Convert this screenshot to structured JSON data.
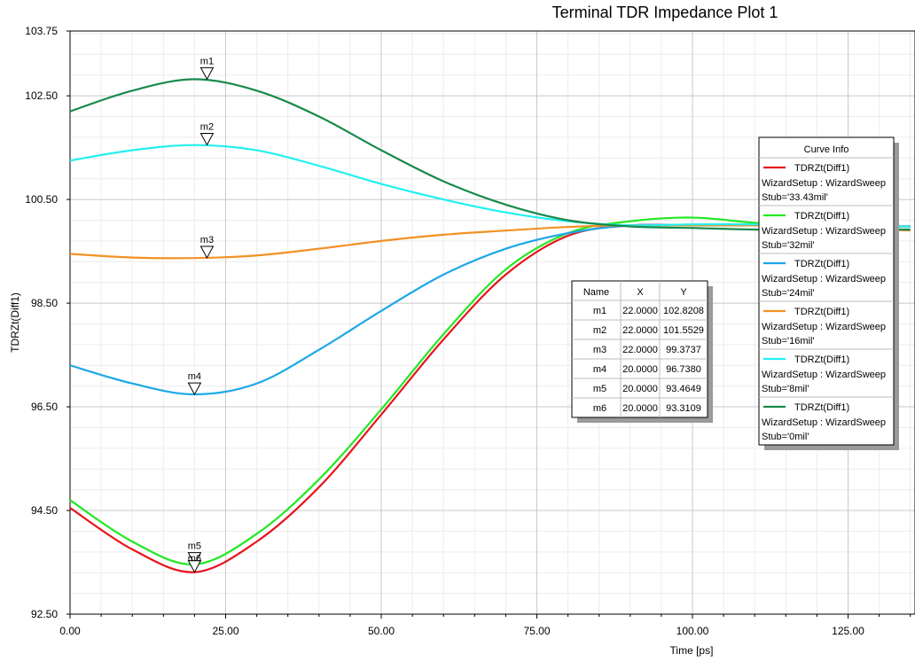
{
  "chart_data": {
    "type": "line",
    "title": "Terminal TDR Impedance Plot 1",
    "xlabel": "Time [ps]",
    "ylabel": "TDRZt(Diff1)",
    "xlim": [
      0,
      135
    ],
    "ylim": [
      92.5,
      103.75
    ],
    "x_ticks": [
      "0.00",
      "25.00",
      "50.00",
      "75.00",
      "100.00",
      "125.00"
    ],
    "y_ticks": [
      "92.50",
      "94.50",
      "96.50",
      "98.50",
      "100.50",
      "102.50",
      "103.75"
    ],
    "grid": true,
    "series": [
      {
        "name": "TDRZt(Diff1)",
        "setup": "WizardSetup : WizardSweep",
        "param": "Stub='33.43mil'",
        "color": "#e8141e",
        "x": [
          0,
          10,
          20,
          30,
          40,
          50,
          60,
          70,
          80,
          90,
          100,
          110,
          120,
          135
        ],
        "y": [
          94.55,
          93.75,
          93.31,
          93.9,
          94.95,
          96.35,
          97.8,
          99.05,
          99.8,
          100.0,
          100.0,
          100.0,
          99.98,
          99.98
        ]
      },
      {
        "name": "TDRZt(Diff1)",
        "setup": "WizardSetup : WizardSweep",
        "param": "Stub='32mil'",
        "color": "#22e822",
        "x": [
          0,
          10,
          20,
          30,
          40,
          50,
          60,
          70,
          80,
          90,
          100,
          110,
          120,
          135
        ],
        "y": [
          94.7,
          93.9,
          93.46,
          94.05,
          95.1,
          96.45,
          97.9,
          99.15,
          99.85,
          100.08,
          100.15,
          100.05,
          99.98,
          99.98
        ]
      },
      {
        "name": "TDRZt(Diff1)",
        "setup": "WizardSetup : WizardSweep",
        "param": "Stub='24mil'",
        "color": "#1aa8e8",
        "x": [
          0,
          10,
          20,
          30,
          40,
          50,
          60,
          70,
          80,
          90,
          100,
          110,
          120,
          135
        ],
        "y": [
          97.3,
          96.95,
          96.74,
          96.95,
          97.6,
          98.35,
          99.05,
          99.55,
          99.85,
          100.0,
          100.0,
          100.0,
          99.98,
          99.98
        ]
      },
      {
        "name": "TDRZt(Diff1)",
        "setup": "WizardSetup : WizardSweep",
        "param": "Stub='16mil'",
        "color": "#f29124",
        "x": [
          0,
          10,
          20,
          30,
          40,
          50,
          60,
          70,
          80,
          90,
          100,
          110,
          120,
          135
        ],
        "y": [
          99.45,
          99.38,
          99.37,
          99.42,
          99.55,
          99.7,
          99.82,
          99.9,
          99.97,
          100.0,
          100.0,
          100.0,
          99.98,
          99.9
        ]
      },
      {
        "name": "TDRZt(Diff1)",
        "setup": "WizardSetup : WizardSweep",
        "param": "Stub='8mil'",
        "color": "#22f0f0",
        "x": [
          0,
          10,
          20,
          30,
          40,
          50,
          60,
          70,
          80,
          90,
          100,
          110,
          120,
          135
        ],
        "y": [
          101.25,
          101.45,
          101.55,
          101.45,
          101.15,
          100.8,
          100.5,
          100.25,
          100.08,
          100.0,
          100.02,
          100.02,
          100.0,
          99.98
        ]
      },
      {
        "name": "TDRZt(Diff1)",
        "setup": "WizardSetup : WizardSweep",
        "param": "Stub='0mil'",
        "color": "#178a4c",
        "x": [
          0,
          10,
          20,
          30,
          40,
          50,
          60,
          70,
          80,
          90,
          100,
          110,
          120,
          135
        ],
        "y": [
          102.2,
          102.6,
          102.82,
          102.6,
          102.1,
          101.45,
          100.85,
          100.4,
          100.1,
          99.98,
          99.95,
          99.92,
          99.92,
          99.92
        ]
      }
    ],
    "markers": [
      {
        "name": "m1",
        "x": 22.0,
        "y": 102.8208,
        "x_text": "22.0000",
        "y_text": "102.8208"
      },
      {
        "name": "m2",
        "x": 22.0,
        "y": 101.5529,
        "x_text": "22.0000",
        "y_text": "101.5529"
      },
      {
        "name": "m3",
        "x": 22.0,
        "y": 99.3737,
        "x_text": "22.0000",
        "y_text": "99.3737"
      },
      {
        "name": "m4",
        "x": 20.0,
        "y": 96.738,
        "x_text": "20.0000",
        "y_text": "96.7380"
      },
      {
        "name": "m5",
        "x": 20.0,
        "y": 93.4649,
        "x_text": "20.0000",
        "y_text": "93.4649"
      },
      {
        "name": "m6",
        "x": 20.0,
        "y": 93.3109,
        "x_text": "20.0000",
        "y_text": "93.3109"
      }
    ],
    "marker_table": {
      "headers": [
        "Name",
        "X",
        "Y"
      ]
    },
    "legend": {
      "title": "Curve Info",
      "position": "right"
    }
  }
}
